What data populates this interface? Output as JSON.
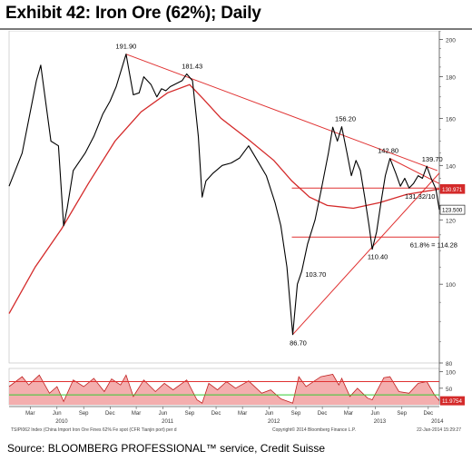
{
  "title": "Exhibit 42: Iron Ore (62%); Daily",
  "source": "Source: BLOOMBERG PROFESSIONAL™ service, Credit Suisse",
  "footer": {
    "index_note": "TSIPI062 Index (China Import Iron Ore Fines 62% Fe spot (CFR Tianjin port) per d",
    "copyright": "Copyright© 2014 Bloomberg Finance L.P.",
    "timestamp": "22-Jan-2014 15:29:27"
  },
  "colors": {
    "price": "#000000",
    "moving_average": "#d42a2a",
    "trendline": "#e03030",
    "axis": "#555555",
    "price_tag": "#ffffff",
    "ma_tag": "#d42a2a",
    "rsi_upper": "#e03030",
    "rsi_lower": "#33cc33",
    "rsi_fill": "#f2a0a0"
  },
  "chart_data": [
    {
      "type": "line",
      "name": "price",
      "x_range": [
        "2010-01-01",
        "2014-01-22"
      ],
      "ylim": [
        80,
        205
      ],
      "y_ticks": [
        80,
        100,
        120,
        140,
        160,
        180,
        200
      ],
      "y_scale": "log",
      "series": [
        {
          "values": [
            {
              "x": "2010-01-01",
              "y": 132
            },
            {
              "x": "2010-02-15",
              "y": 145
            },
            {
              "x": "2010-04-05",
              "y": 178
            },
            {
              "x": "2010-04-20",
              "y": 186
            },
            {
              "x": "2010-05-25",
              "y": 150
            },
            {
              "x": "2010-06-20",
              "y": 148
            },
            {
              "x": "2010-07-08",
              "y": 118
            },
            {
              "x": "2010-07-20",
              "y": 124
            },
            {
              "x": "2010-08-10",
              "y": 138
            },
            {
              "x": "2010-09-20",
              "y": 145
            },
            {
              "x": "2010-10-20",
              "y": 152
            },
            {
              "x": "2010-11-20",
              "y": 162
            },
            {
              "x": "2010-12-15",
              "y": 168
            },
            {
              "x": "2011-01-05",
              "y": 175
            },
            {
              "x": "2011-02-08",
              "y": 191.9
            },
            {
              "x": "2011-03-05",
              "y": 171
            },
            {
              "x": "2011-03-25",
              "y": 172
            },
            {
              "x": "2011-04-10",
              "y": 180
            },
            {
              "x": "2011-05-05",
              "y": 176
            },
            {
              "x": "2011-05-25",
              "y": 170
            },
            {
              "x": "2011-06-10",
              "y": 174
            },
            {
              "x": "2011-06-25",
              "y": 173
            },
            {
              "x": "2011-07-10",
              "y": 175
            },
            {
              "x": "2011-08-20",
              "y": 178
            },
            {
              "x": "2011-09-05",
              "y": 181.43
            },
            {
              "x": "2011-09-25",
              "y": 178
            },
            {
              "x": "2011-10-15",
              "y": 152
            },
            {
              "x": "2011-10-28",
              "y": 128
            },
            {
              "x": "2011-11-10",
              "y": 134
            },
            {
              "x": "2011-12-05",
              "y": 137
            },
            {
              "x": "2012-01-05",
              "y": 140
            },
            {
              "x": "2012-02-05",
              "y": 141
            },
            {
              "x": "2012-03-05",
              "y": 143
            },
            {
              "x": "2012-04-05",
              "y": 148
            },
            {
              "x": "2012-05-05",
              "y": 142
            },
            {
              "x": "2012-06-05",
              "y": 136
            },
            {
              "x": "2012-07-05",
              "y": 126
            },
            {
              "x": "2012-07-25",
              "y": 118
            },
            {
              "x": "2012-08-15",
              "y": 105
            },
            {
              "x": "2012-09-04",
              "y": 86.7
            },
            {
              "x": "2012-09-20",
              "y": 100
            },
            {
              "x": "2012-10-05",
              "y": 103.7
            },
            {
              "x": "2012-10-25",
              "y": 112
            },
            {
              "x": "2012-11-20",
              "y": 120
            },
            {
              "x": "2012-12-10",
              "y": 130
            },
            {
              "x": "2013-01-05",
              "y": 145
            },
            {
              "x": "2013-01-20",
              "y": 156
            },
            {
              "x": "2013-02-05",
              "y": 150
            },
            {
              "x": "2013-02-20",
              "y": 156.2
            },
            {
              "x": "2013-03-10",
              "y": 145
            },
            {
              "x": "2013-03-25",
              "y": 136
            },
            {
              "x": "2013-04-10",
              "y": 142
            },
            {
              "x": "2013-04-25",
              "y": 138
            },
            {
              "x": "2013-05-10",
              "y": 128
            },
            {
              "x": "2013-05-25",
              "y": 118
            },
            {
              "x": "2013-06-05",
              "y": 110.4
            },
            {
              "x": "2013-06-20",
              "y": 116
            },
            {
              "x": "2013-07-05",
              "y": 126
            },
            {
              "x": "2013-07-20",
              "y": 136
            },
            {
              "x": "2013-08-05",
              "y": 142.8
            },
            {
              "x": "2013-08-25",
              "y": 137
            },
            {
              "x": "2013-09-10",
              "y": 132
            },
            {
              "x": "2013-09-25",
              "y": 135
            },
            {
              "x": "2013-10-10",
              "y": 131.32
            },
            {
              "x": "2013-10-25",
              "y": 133
            },
            {
              "x": "2013-11-10",
              "y": 136
            },
            {
              "x": "2013-11-25",
              "y": 135
            },
            {
              "x": "2013-12-10",
              "y": 139.7
            },
            {
              "x": "2013-12-25",
              "y": 135
            },
            {
              "x": "2014-01-10",
              "y": 131
            },
            {
              "x": "2014-01-22",
              "y": 123.5
            }
          ]
        },
        {
          "values": [
            {
              "x": "2010-01-01",
              "y": 92
            },
            {
              "x": "2010-04-01",
              "y": 105
            },
            {
              "x": "2010-07-01",
              "y": 117
            },
            {
              "x": "2010-10-01",
              "y": 133
            },
            {
              "x": "2011-01-01",
              "y": 150
            },
            {
              "x": "2011-04-01",
              "y": 163
            },
            {
              "x": "2011-07-01",
              "y": 172
            },
            {
              "x": "2011-09-15",
              "y": 176
            },
            {
              "x": "2011-11-01",
              "y": 169
            },
            {
              "x": "2012-01-01",
              "y": 160
            },
            {
              "x": "2012-04-01",
              "y": 151
            },
            {
              "x": "2012-07-01",
              "y": 142
            },
            {
              "x": "2012-09-01",
              "y": 134
            },
            {
              "x": "2012-11-01",
              "y": 128
            },
            {
              "x": "2013-01-01",
              "y": 125
            },
            {
              "x": "2013-04-01",
              "y": 124
            },
            {
              "x": "2013-07-01",
              "y": 126
            },
            {
              "x": "2013-10-01",
              "y": 129
            },
            {
              "x": "2014-01-22",
              "y": 130.971
            }
          ]
        }
      ],
      "trendlines": [
        {
          "from": {
            "x": "2011-02-08",
            "y": 191.9
          },
          "to": {
            "x": "2014-01-15",
            "y": 138
          }
        },
        {
          "from": {
            "x": "2012-09-04",
            "y": 86.7
          },
          "to": {
            "x": "2014-01-22",
            "y": 137
          }
        },
        {
          "from": {
            "x": "2013-08-05",
            "y": 142.8
          },
          "to": {
            "x": "2014-01-22",
            "y": 133
          }
        }
      ],
      "levels": [
        {
          "y": 131.32,
          "from": "2012-09-01",
          "to": "2014-01-22"
        },
        {
          "y": 114.28,
          "from": "2012-09-01",
          "to": "2014-01-22"
        }
      ],
      "annotations": [
        {
          "text": "191.90",
          "x": "2011-02-08",
          "y": 191.9
        },
        {
          "text": "181.43",
          "x": "2011-09-05",
          "y": 181.43
        },
        {
          "text": "156.20",
          "x": "2013-02-20",
          "y": 156.2
        },
        {
          "text": "142.80",
          "x": "2013-08-05",
          "y": 142.8
        },
        {
          "text": "139.70",
          "x": "2013-12-10",
          "y": 139.7
        },
        {
          "text": "131.32/10",
          "x": "2013-10-10",
          "y": 131.32
        },
        {
          "text": "103.70",
          "x": "2012-10-05",
          "y": 103.7
        },
        {
          "text": "110.40",
          "x": "2013-06-05",
          "y": 110.4
        },
        {
          "text": "61.8% = 114.28",
          "x": "2013-11-01",
          "y": 114.28
        },
        {
          "text": "86.70",
          "x": "2012-09-04",
          "y": 86.7
        }
      ],
      "tags": [
        {
          "text": "130.971",
          "y": 130.971
        },
        {
          "text": "123.500",
          "y": 123.5
        }
      ]
    },
    {
      "type": "area",
      "name": "rsi",
      "ylim": [
        0,
        110
      ],
      "y_ticks": [
        50,
        100
      ],
      "levels": [
        70,
        30
      ],
      "tag": {
        "text": "11.9754",
        "y": 11.9754
      },
      "series": [
        {
          "values": [
            {
              "x": "2010-01-01",
              "y": 55
            },
            {
              "x": "2010-02-15",
              "y": 85
            },
            {
              "x": "2010-03-10",
              "y": 60
            },
            {
              "x": "2010-04-15",
              "y": 90
            },
            {
              "x": "2010-05-20",
              "y": 35
            },
            {
              "x": "2010-06-15",
              "y": 55
            },
            {
              "x": "2010-07-08",
              "y": 10
            },
            {
              "x": "2010-08-10",
              "y": 75
            },
            {
              "x": "2010-09-15",
              "y": 55
            },
            {
              "x": "2010-10-20",
              "y": 80
            },
            {
              "x": "2010-11-25",
              "y": 40
            },
            {
              "x": "2010-12-20",
              "y": 78
            },
            {
              "x": "2011-01-20",
              "y": 60
            },
            {
              "x": "2011-02-08",
              "y": 90
            },
            {
              "x": "2011-03-05",
              "y": 25
            },
            {
              "x": "2011-04-10",
              "y": 75
            },
            {
              "x": "2011-05-20",
              "y": 40
            },
            {
              "x": "2011-06-20",
              "y": 65
            },
            {
              "x": "2011-07-20",
              "y": 45
            },
            {
              "x": "2011-09-05",
              "y": 75
            },
            {
              "x": "2011-10-10",
              "y": 15
            },
            {
              "x": "2011-10-28",
              "y": 5
            },
            {
              "x": "2011-11-20",
              "y": 65
            },
            {
              "x": "2011-12-20",
              "y": 45
            },
            {
              "x": "2012-01-20",
              "y": 70
            },
            {
              "x": "2012-02-20",
              "y": 50
            },
            {
              "x": "2012-04-05",
              "y": 72
            },
            {
              "x": "2012-05-20",
              "y": 35
            },
            {
              "x": "2012-06-20",
              "y": 45
            },
            {
              "x": "2012-07-25",
              "y": 18
            },
            {
              "x": "2012-09-04",
              "y": 5
            },
            {
              "x": "2012-09-25",
              "y": 85
            },
            {
              "x": "2012-10-20",
              "y": 55
            },
            {
              "x": "2012-12-10",
              "y": 85
            },
            {
              "x": "2013-01-20",
              "y": 92
            },
            {
              "x": "2013-02-10",
              "y": 60
            },
            {
              "x": "2013-02-20",
              "y": 80
            },
            {
              "x": "2013-03-20",
              "y": 25
            },
            {
              "x": "2013-04-15",
              "y": 50
            },
            {
              "x": "2013-05-20",
              "y": 20
            },
            {
              "x": "2013-06-05",
              "y": 15
            },
            {
              "x": "2013-07-15",
              "y": 82
            },
            {
              "x": "2013-08-05",
              "y": 85
            },
            {
              "x": "2013-09-05",
              "y": 40
            },
            {
              "x": "2013-10-10",
              "y": 35
            },
            {
              "x": "2013-11-10",
              "y": 65
            },
            {
              "x": "2013-12-10",
              "y": 70
            },
            {
              "x": "2014-01-05",
              "y": 30
            },
            {
              "x": "2014-01-22",
              "y": 12
            }
          ]
        }
      ]
    }
  ],
  "x_axis": {
    "month_labels": [
      {
        "text": "Mar",
        "x": "2010-03-15"
      },
      {
        "text": "Jun",
        "x": "2010-06-15"
      },
      {
        "text": "Sep",
        "x": "2010-09-15"
      },
      {
        "text": "Dec",
        "x": "2010-12-15"
      },
      {
        "text": "Mar",
        "x": "2011-03-15"
      },
      {
        "text": "Jun",
        "x": "2011-06-15"
      },
      {
        "text": "Sep",
        "x": "2011-09-15"
      },
      {
        "text": "Dec",
        "x": "2011-12-15"
      },
      {
        "text": "Mar",
        "x": "2012-03-15"
      },
      {
        "text": "Jun",
        "x": "2012-06-15"
      },
      {
        "text": "Sep",
        "x": "2012-09-15"
      },
      {
        "text": "Dec",
        "x": "2012-12-15"
      },
      {
        "text": "Mar",
        "x": "2013-03-15"
      },
      {
        "text": "Jun",
        "x": "2013-06-15"
      },
      {
        "text": "Sep",
        "x": "2013-09-15"
      },
      {
        "text": "Dec",
        "x": "2013-12-15"
      }
    ],
    "year_labels": [
      {
        "text": "2010",
        "x": "2010-07-01"
      },
      {
        "text": "2011",
        "x": "2011-07-01"
      },
      {
        "text": "2012",
        "x": "2012-07-01"
      },
      {
        "text": "2013",
        "x": "2013-07-01"
      },
      {
        "text": "2014",
        "x": "2014-01-15"
      }
    ]
  }
}
